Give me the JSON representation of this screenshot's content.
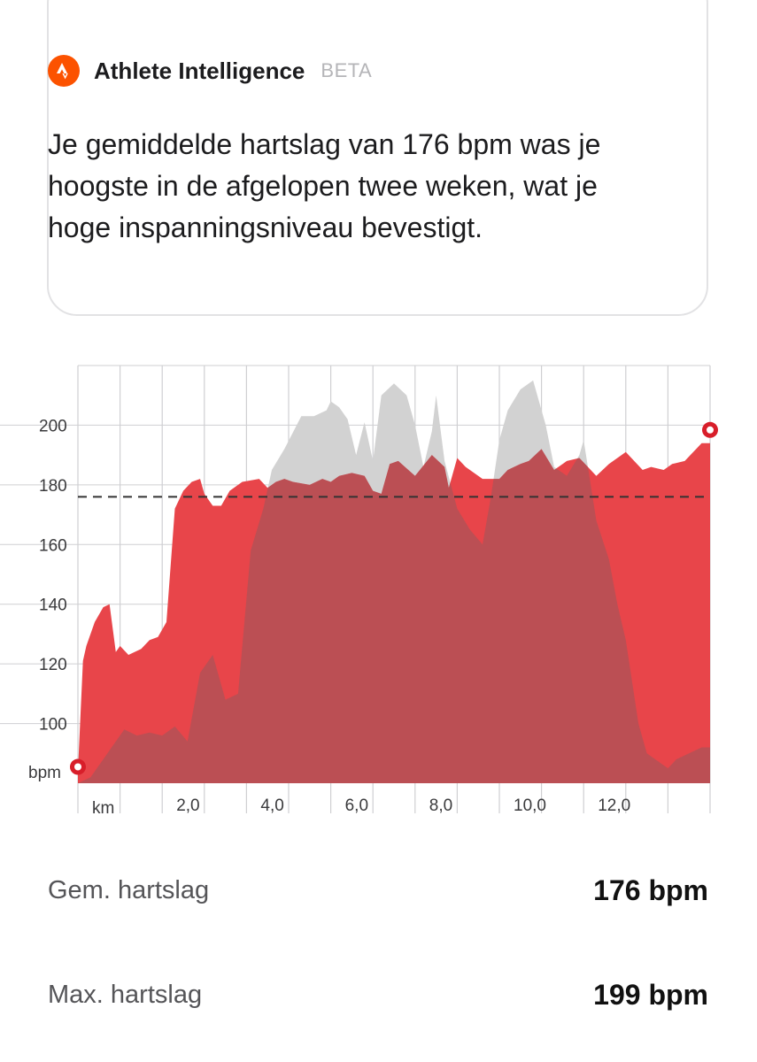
{
  "ai_card": {
    "title": "Athlete Intelligence",
    "badge": "BETA",
    "icon": "strava-logo-icon",
    "message": "Je gemiddelde hartslag van 176 bpm was je hoogste in de afgelopen twee weken, wat je hoge inspanningsniveau bevestigt."
  },
  "colors": {
    "heart_rate_fill": "#e8454a",
    "elevation_fill": "#d2d2d2",
    "average_line": "#333333",
    "marker": "#d81e2a",
    "brand": "#fc5200"
  },
  "chart_data": {
    "type": "area",
    "y_unit_label": "bpm",
    "x_unit_label": "km",
    "yticks": [
      "100",
      "120",
      "140",
      "160",
      "180",
      "200"
    ],
    "xticks": [
      "2,0",
      "4,0",
      "6,0",
      "8,0",
      "10,0",
      "12,0"
    ],
    "ylim": [
      80,
      220
    ],
    "xlim": [
      0,
      15
    ],
    "average_bpm": 176,
    "grid": true,
    "series": [
      {
        "kind": "heart_rate",
        "x": [
          0,
          0.12,
          0.2,
          0.4,
          0.6,
          0.75,
          0.9,
          1.0,
          1.2,
          1.5,
          1.7,
          1.9,
          2.1,
          2.3,
          2.5,
          2.7,
          2.9,
          3.0,
          3.2,
          3.4,
          3.6,
          3.9,
          4.3,
          4.5,
          4.7,
          4.9,
          5.1,
          5.5,
          5.8,
          6.0,
          6.2,
          6.5,
          6.8,
          7.0,
          7.2,
          7.4,
          7.6,
          8.0,
          8.4,
          8.7,
          8.8,
          9.0,
          9.2,
          9.6,
          9.8,
          10.0,
          10.2,
          10.5,
          10.7,
          11.0,
          11.3,
          11.6,
          11.9,
          12.1,
          12.3,
          12.6,
          13.0,
          13.4,
          13.6,
          13.9,
          14.1,
          14.4,
          14.6,
          14.8,
          15.0
        ],
        "values": [
          84,
          121,
          126,
          134,
          139,
          140,
          124,
          126,
          123,
          125,
          128,
          129,
          134,
          172,
          178,
          181,
          182,
          177,
          173,
          173,
          178,
          181,
          182,
          179,
          181,
          182,
          181,
          180,
          182,
          181,
          183,
          184,
          183,
          178,
          177,
          187,
          188,
          183,
          190,
          186,
          179,
          189,
          186,
          182,
          182,
          182,
          185,
          187,
          188,
          192,
          185,
          188,
          189,
          186,
          183,
          187,
          191,
          185,
          186,
          185,
          187,
          188,
          191,
          194,
          194
        ]
      },
      {
        "kind": "elevation",
        "x": [
          0,
          0.3,
          0.6,
          0.9,
          1.1,
          1.4,
          1.7,
          2.0,
          2.3,
          2.6,
          2.9,
          3.2,
          3.5,
          3.8,
          4.1,
          4.4,
          4.6,
          4.9,
          5.3,
          5.6,
          5.9,
          6.0,
          6.2,
          6.4,
          6.6,
          6.8,
          7.0,
          7.2,
          7.5,
          7.8,
          8.0,
          8.2,
          8.4,
          8.5,
          8.7,
          9.0,
          9.3,
          9.6,
          9.8,
          10.0,
          10.2,
          10.5,
          10.8,
          11.1,
          11.3,
          11.6,
          11.9,
          12.0,
          12.1,
          12.3,
          12.6,
          12.8,
          13.0,
          13.3,
          13.5,
          13.7,
          14.0,
          14.2,
          14.5,
          14.8,
          15.0
        ],
        "values": [
          80,
          82,
          88,
          94,
          98,
          96,
          97,
          96,
          99,
          94,
          117,
          123,
          108,
          110,
          158,
          172,
          185,
          192,
          203,
          203,
          205,
          208,
          206,
          202,
          190,
          201,
          188,
          210,
          214,
          210,
          200,
          186,
          198,
          210,
          188,
          172,
          165,
          160,
          176,
          195,
          205,
          212,
          215,
          200,
          186,
          183,
          190,
          195,
          186,
          168,
          155,
          140,
          128,
          100,
          90,
          88,
          85,
          88,
          90,
          92,
          92
        ]
      }
    ]
  }
}
